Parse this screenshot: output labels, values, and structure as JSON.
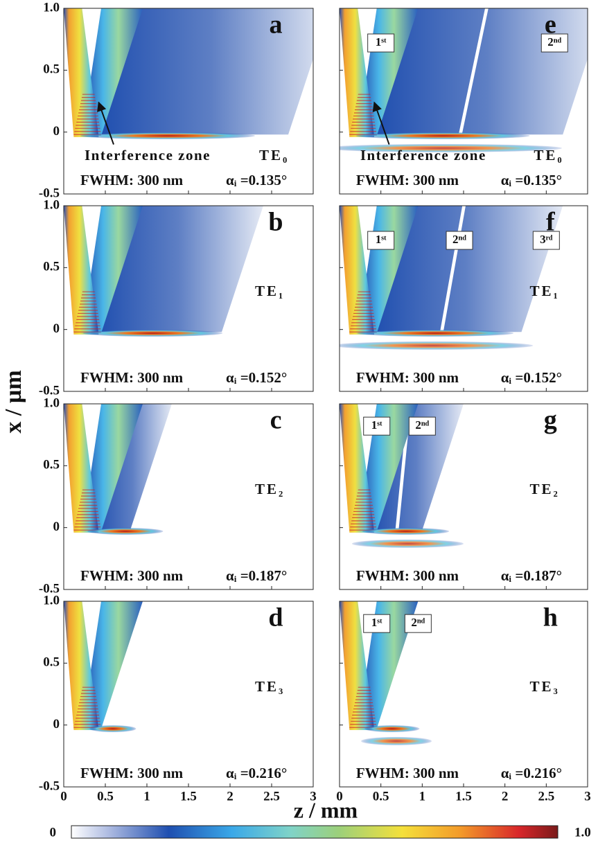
{
  "chart_data": [
    {
      "type": "heatmap",
      "panel": "a",
      "mode": "TE₀",
      "annotation": "Interference zone",
      "fwhm": "FWHM: 300 nm",
      "angle": "αᵢ =0.135°",
      "xlim": [
        0,
        3
      ],
      "ylim": [
        -0.5,
        1
      ],
      "xticks": [
        0,
        0.5,
        1,
        1.5,
        2,
        2.5,
        3
      ],
      "yticks": [
        -0.5,
        0,
        0.5,
        {
          "value": 1,
          "label": "1.0"
        }
      ]
    },
    {
      "type": "heatmap",
      "panel": "b",
      "mode": "TE₁",
      "fwhm": "FWHM: 300 nm",
      "angle": "αᵢ =0.152°",
      "xlim": [
        0,
        3
      ],
      "ylim": [
        -0.5,
        1
      ],
      "xticks": [
        0,
        0.5,
        1,
        1.5,
        2,
        2.5,
        3
      ],
      "yticks": [
        -0.5,
        0,
        0.5,
        {
          "value": 1,
          "label": "1.0"
        }
      ]
    },
    {
      "type": "heatmap",
      "panel": "c",
      "mode": "TE₂",
      "fwhm": "FWHM: 300 nm",
      "angle": "αᵢ =0.187°",
      "xlim": [
        0,
        3
      ],
      "ylim": [
        -0.5,
        1
      ],
      "xticks": [
        0,
        0.5,
        1,
        1.5,
        2,
        2.5,
        3
      ],
      "yticks": [
        -0.5,
        0,
        0.5,
        {
          "value": 1,
          "label": "1.0"
        }
      ]
    },
    {
      "type": "heatmap",
      "panel": "d",
      "mode": "TE₃",
      "fwhm": "FWHM: 300 nm",
      "angle": "αᵢ =0.216°",
      "xlim": [
        0,
        3
      ],
      "ylim": [
        -0.5,
        1
      ],
      "xticks": [
        0,
        0.5,
        1,
        1.5,
        2,
        2.5,
        3
      ],
      "yticks": [
        -0.5,
        0,
        0.5,
        {
          "value": 1,
          "label": "1.0"
        }
      ]
    },
    {
      "type": "heatmap",
      "panel": "e",
      "mode": "TE₀",
      "annotation": "Interference zone",
      "orders": [
        "1ˢᵗ",
        "2ⁿᵈ"
      ],
      "fwhm": "FWHM: 300 nm",
      "angle": "αᵢ =0.135°",
      "xlim": [
        0,
        3
      ],
      "ylim": [
        -0.5,
        1
      ],
      "xticks": [
        0,
        0.5,
        1,
        1.5,
        2,
        2.5,
        3
      ],
      "yticks": [
        -0.5,
        0,
        0.5,
        {
          "value": 1,
          "label": "1.0"
        }
      ]
    },
    {
      "type": "heatmap",
      "panel": "f",
      "mode": "TE₁",
      "orders": [
        "1ˢᵗ",
        "2ⁿᵈ",
        "3ʳᵈ"
      ],
      "fwhm": "FWHM: 300 nm",
      "angle": "αᵢ =0.152°",
      "xlim": [
        0,
        3
      ],
      "ylim": [
        -0.5,
        1
      ],
      "xticks": [
        0,
        0.5,
        1,
        1.5,
        2,
        2.5,
        3
      ],
      "yticks": [
        -0.5,
        0,
        0.5,
        {
          "value": 1,
          "label": "1.0"
        }
      ]
    },
    {
      "type": "heatmap",
      "panel": "g",
      "mode": "TE₂",
      "orders": [
        "1ˢᵗ",
        "2ⁿᵈ"
      ],
      "fwhm": "FWHM: 300 nm",
      "angle": "αᵢ =0.187°",
      "xlim": [
        0,
        3
      ],
      "ylim": [
        -0.5,
        1
      ],
      "xticks": [
        0,
        0.5,
        1,
        1.5,
        2,
        2.5,
        3
      ],
      "yticks": [
        -0.5,
        0,
        0.5,
        {
          "value": 1,
          "label": "1.0"
        }
      ]
    },
    {
      "type": "heatmap",
      "panel": "h",
      "mode": "TE₃",
      "orders": [
        "1ˢᵗ",
        "2ⁿᵈ"
      ],
      "fwhm": "FWHM: 300 nm",
      "angle": "αᵢ =0.216°",
      "xlim": [
        0,
        3
      ],
      "ylim": [
        -0.5,
        1
      ],
      "xticks": [
        0,
        0.5,
        1,
        1.5,
        2,
        2.5,
        3
      ],
      "yticks": [
        -0.5,
        0,
        0.5,
        {
          "value": 1,
          "label": "1.0"
        }
      ]
    }
  ],
  "figure": {
    "x_label": "z / mm",
    "y_label": "x / µm",
    "colorbar": {
      "lim": [
        0,
        1
      ],
      "ticks": [
        0,
        {
          "value": 1,
          "label": "1.0"
        }
      ]
    }
  }
}
